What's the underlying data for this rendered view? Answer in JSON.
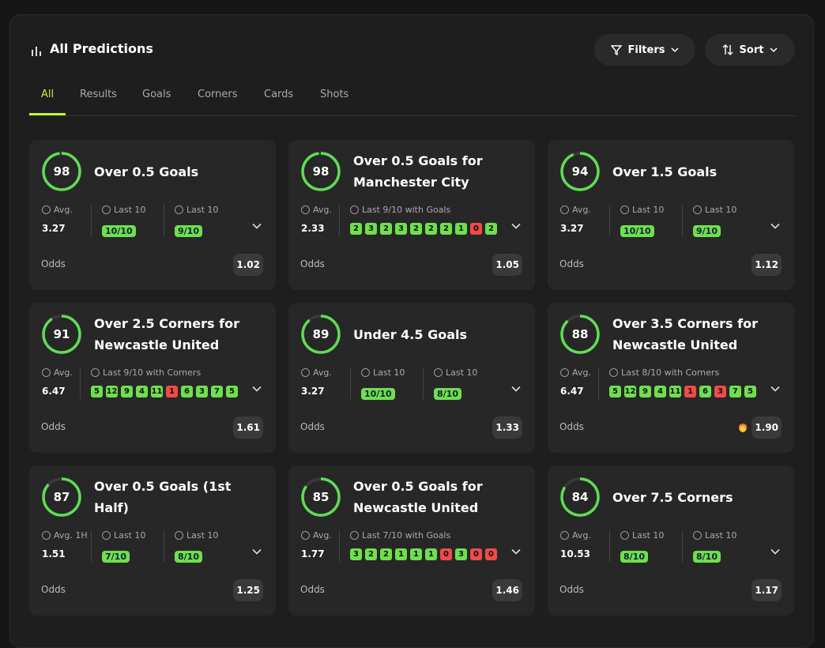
{
  "header": {
    "title": "All Predictions",
    "filters": "Filters",
    "sort": "Sort"
  },
  "tabs": [
    "All",
    "Results",
    "Goals",
    "Corners",
    "Cards",
    "Shots"
  ],
  "odds_label": "Odds",
  "cards": [
    {
      "score": 98,
      "title": "Over 0.5 Goals",
      "stats": [
        {
          "label": "Avg.",
          "value": 3.27
        },
        {
          "label": "Last 10",
          "value": "10/10"
        },
        {
          "label": "Last 10",
          "value": "9/10"
        }
      ],
      "odds": 1.02
    },
    {
      "score": 98,
      "title": "Over 0.5 Goals for Manchester City",
      "stats": [
        {
          "label": "Avg.",
          "value": 2.33
        },
        {
          "label": "Last 9/10 with Goals",
          "history": [
            2,
            3,
            2,
            3,
            2,
            2,
            2,
            1,
            0,
            2
          ]
        }
      ],
      "odds": 1.05
    },
    {
      "score": 94,
      "title": "Over 1.5 Goals",
      "stats": [
        {
          "label": "Avg.",
          "value": 3.27
        },
        {
          "label": "Last 10",
          "value": "10/10"
        },
        {
          "label": "Last 10",
          "value": "9/10"
        }
      ],
      "odds": 1.12
    },
    {
      "score": 91,
      "title": "Over 2.5 Corners for Newcastle United",
      "stats": [
        {
          "label": "Avg.",
          "value": 6.47
        },
        {
          "label": "Last 9/10 with Corners",
          "history": [
            5,
            12,
            9,
            4,
            11,
            1,
            6,
            3,
            7,
            5
          ]
        }
      ],
      "odds": 1.61
    },
    {
      "score": 89,
      "title": "Under 4.5 Goals",
      "stats": [
        {
          "label": "Avg.",
          "value": 3.27
        },
        {
          "label": "Last 10",
          "value": "10/10"
        },
        {
          "label": "Last 10",
          "value": "8/10"
        }
      ],
      "odds": 1.33
    },
    {
      "score": 88,
      "title": "Over 3.5 Corners for Newcastle United",
      "stats": [
        {
          "label": "Avg.",
          "value": 6.47
        },
        {
          "label": "Last 8/10 with Corners",
          "history": [
            5,
            12,
            9,
            4,
            11,
            1,
            6,
            3,
            7,
            5
          ]
        }
      ],
      "odds": "1.90",
      "hot": true
    },
    {
      "score": 87,
      "title": "Over 0.5 Goals (1st Half)",
      "stats": [
        {
          "label": "Avg. 1H",
          "value": 1.51
        },
        {
          "label": "Last 10",
          "value": "7/10"
        },
        {
          "label": "Last 10",
          "value": "8/10"
        }
      ],
      "odds": 1.25
    },
    {
      "score": 85,
      "title": "Over 0.5 Goals for Newcastle United",
      "stats": [
        {
          "label": "Avg.",
          "value": 1.77
        },
        {
          "label": "Last 7/10 with Goals",
          "history": [
            3,
            2,
            2,
            1,
            1,
            1,
            0,
            3,
            0,
            0
          ]
        }
      ],
      "odds": 1.46
    },
    {
      "score": 84,
      "title": "Over 7.5 Corners",
      "stats": [
        {
          "label": "Avg.",
          "value": 10.53
        },
        {
          "label": "Last 10",
          "value": "8/10"
        },
        {
          "label": "Last 10",
          "value": "8/10"
        }
      ],
      "odds": 1.17
    }
  ]
}
